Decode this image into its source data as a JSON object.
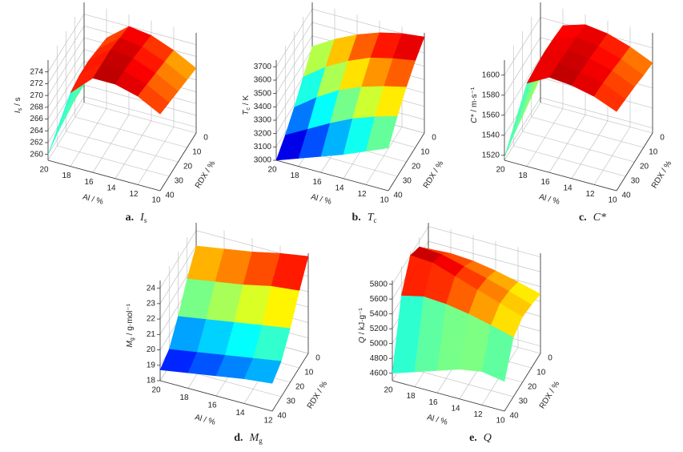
{
  "chart_data": [
    {
      "type": "surface",
      "caption": "a.",
      "caption_symbol": "I",
      "caption_sub": "s",
      "zlabel_symbol": "I",
      "zlabel_sub": "s",
      "zlabel_unit": "/ s",
      "xlabel": "Al / %",
      "ylabel": "RDX / %",
      "x": [
        10,
        12,
        14,
        16,
        18,
        20
      ],
      "y": [
        0,
        10,
        20,
        30,
        40
      ],
      "values": [
        [
          270,
          270.5,
          271,
          271.5,
          272
        ],
        [
          272,
          272.5,
          273,
          273.5,
          274
        ],
        [
          273.5,
          274,
          274.5,
          274.8,
          275
        ],
        [
          274,
          274.5,
          275,
          275,
          275
        ],
        [
          271,
          271.5,
          272,
          272,
          271.5
        ],
        [
          262,
          262,
          261.5,
          261,
          260
        ]
      ],
      "xlim": [
        10,
        20
      ],
      "ylim": [
        0,
        40
      ],
      "zlim": [
        259,
        276
      ],
      "xticks": [
        20,
        18,
        16,
        14,
        12,
        10
      ],
      "yticks": [
        0,
        10,
        20,
        30,
        40
      ],
      "zticks": [
        260,
        262,
        264,
        266,
        268,
        270,
        272,
        274
      ]
    },
    {
      "type": "surface",
      "caption": "b.",
      "caption_symbol": "T",
      "caption_sub": "c",
      "zlabel_symbol": "T",
      "zlabel_sub": "c",
      "zlabel_unit": "/ K",
      "xlabel": "Al / %",
      "ylabel": "RDX / %",
      "x": [
        10,
        12,
        14,
        16,
        18,
        20
      ],
      "y": [
        0,
        10,
        20,
        30,
        40
      ],
      "values": [
        [
          3720,
          3650,
          3560,
          3450,
          3320
        ],
        [
          3700,
          3620,
          3520,
          3400,
          3250
        ],
        [
          3660,
          3580,
          3470,
          3340,
          3180
        ],
        [
          3600,
          3510,
          3400,
          3260,
          3120
        ],
        [
          3520,
          3420,
          3300,
          3170,
          3060
        ],
        [
          3420,
          3300,
          3180,
          3080,
          3000
        ]
      ],
      "xlim": [
        10,
        20
      ],
      "ylim": [
        0,
        40
      ],
      "zlim": [
        3000,
        3750
      ],
      "xticks": [
        20,
        18,
        16,
        14,
        12,
        10
      ],
      "yticks": [
        0,
        10,
        20,
        30,
        40
      ],
      "zticks": [
        3000,
        3100,
        3200,
        3300,
        3400,
        3500,
        3600,
        3700
      ]
    },
    {
      "type": "surface",
      "caption": "c.",
      "caption_symbol": "C*",
      "zlabel_symbol": "C*",
      "zlabel_unit": "/ m·s⁻¹",
      "xlabel": "Al / %",
      "ylabel": "RDX / %",
      "x": [
        10,
        12,
        14,
        16,
        18,
        20
      ],
      "y": [
        0,
        10,
        20,
        30,
        40
      ],
      "values": [
        [
          1585,
          1587,
          1590,
          1592,
          1594
        ],
        [
          1595,
          1597,
          1600,
          1602,
          1603
        ],
        [
          1602,
          1604,
          1606,
          1607,
          1608
        ],
        [
          1605,
          1607,
          1608,
          1609,
          1610
        ],
        [
          1598,
          1600,
          1601,
          1600,
          1598
        ],
        [
          1540,
          1535,
          1530,
          1525,
          1518
        ]
      ],
      "xlim": [
        10,
        20
      ],
      "ylim": [
        0,
        40
      ],
      "zlim": [
        1515,
        1615
      ],
      "xticks": [
        20,
        18,
        16,
        14,
        12,
        10
      ],
      "yticks": [
        0,
        10,
        20,
        30,
        40
      ],
      "zticks": [
        1520,
        1540,
        1560,
        1580,
        1600
      ]
    },
    {
      "type": "surface",
      "caption": "d.",
      "caption_symbol": "M",
      "caption_sub": "g",
      "zlabel_symbol": "M",
      "zlabel_sub": "g",
      "zlabel_unit": "/ g·mol⁻¹",
      "xlabel": "Al / %",
      "ylabel": "RDX / %",
      "x": [
        12,
        14,
        16,
        18,
        20
      ],
      "y": [
        0,
        10,
        20,
        30,
        40
      ],
      "values": [
        [
          24.3,
          23,
          21.5,
          20.3,
          19.8
        ],
        [
          24,
          22.8,
          21.2,
          20,
          19.6
        ],
        [
          23.6,
          22.4,
          20.9,
          19.7,
          19.3
        ],
        [
          23.3,
          22.1,
          20.6,
          19.4,
          19
        ],
        [
          23,
          21.8,
          20.3,
          19.1,
          18.7
        ]
      ],
      "xlim": [
        12,
        20
      ],
      "ylim": [
        0,
        40
      ],
      "zlim": [
        18,
        24.5
      ],
      "xticks": [
        12,
        14,
        16,
        18,
        20
      ],
      "yticks": [
        0,
        10,
        20,
        30,
        40
      ],
      "zticks": [
        18,
        19,
        20,
        21,
        22,
        23,
        24
      ]
    },
    {
      "type": "surface",
      "caption": "e.",
      "caption_symbol": "Q",
      "zlabel_symbol": "Q",
      "zlabel_unit": "/ kJ·g⁻¹",
      "xlabel": "Al / %",
      "ylabel": "RDX / %",
      "x": [
        10,
        12,
        14,
        16,
        18,
        20
      ],
      "y": [
        0,
        10,
        20,
        30,
        40
      ],
      "values": [
        [
          5300,
          5350,
          5380,
          5300,
          4900
        ],
        [
          5380,
          5450,
          5480,
          5380,
          4950
        ],
        [
          5450,
          5540,
          5580,
          5450,
          4900
        ],
        [
          5500,
          5620,
          5680,
          5500,
          4800
        ],
        [
          5520,
          5700,
          5780,
          5520,
          4700
        ],
        [
          5500,
          5720,
          5800,
          5450,
          4600
        ]
      ],
      "xlim": [
        10,
        20
      ],
      "ylim": [
        0,
        40
      ],
      "zlim": [
        4500,
        5850
      ],
      "xticks": [
        10,
        12,
        14,
        16,
        18,
        20
      ],
      "yticks": [
        0,
        10,
        20,
        30,
        40
      ],
      "zticks": [
        4600,
        4800,
        5000,
        5200,
        5400,
        5600,
        5800
      ]
    }
  ]
}
